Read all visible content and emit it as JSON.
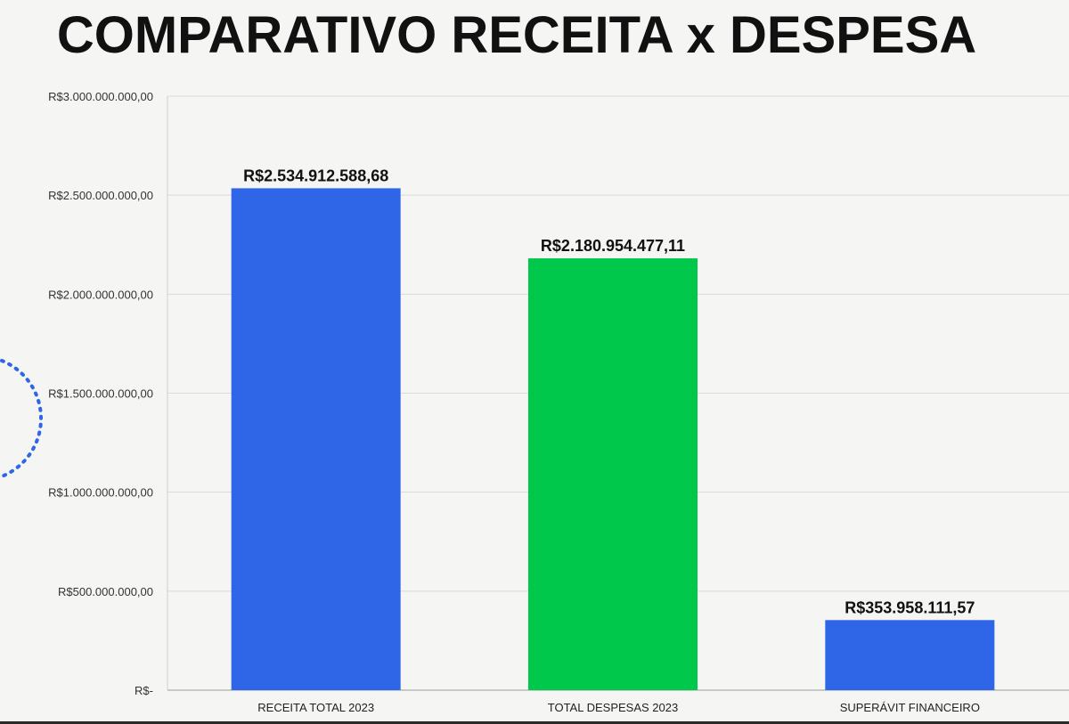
{
  "title": "COMPARATIVO RECEITA x DESPESA",
  "chart_data": {
    "type": "bar",
    "title": "COMPARATIVO RECEITA x DESPESA",
    "xlabel": "",
    "ylabel": "",
    "categories": [
      "RECEITA TOTAL 2023",
      "TOTAL DESPESAS 2023",
      "SUPERÁVIT FINANCEIRO"
    ],
    "values": [
      2534912588.68,
      2180954477.11,
      353958111.57
    ],
    "data_labels": [
      "R$2.534.912.588,68",
      "R$2.180.954.477,11",
      "R$353.958.111,57"
    ],
    "bar_colors": [
      "#2f66e8",
      "#00c84a",
      "#2f66e8"
    ],
    "ylim": [
      0,
      3000000000
    ],
    "yticks": [
      0,
      500000000,
      1000000000,
      1500000000,
      2000000000,
      2500000000,
      3000000000
    ],
    "ytick_labels": [
      "R$-",
      "R$500.000.000,00",
      "R$1.000.000.000,00",
      "R$1.500.000.000,00",
      "R$2.000.000.000,00",
      "R$2.500.000.000,00",
      "R$3.000.000.000,00"
    ],
    "grid": true,
    "legend": "none"
  }
}
